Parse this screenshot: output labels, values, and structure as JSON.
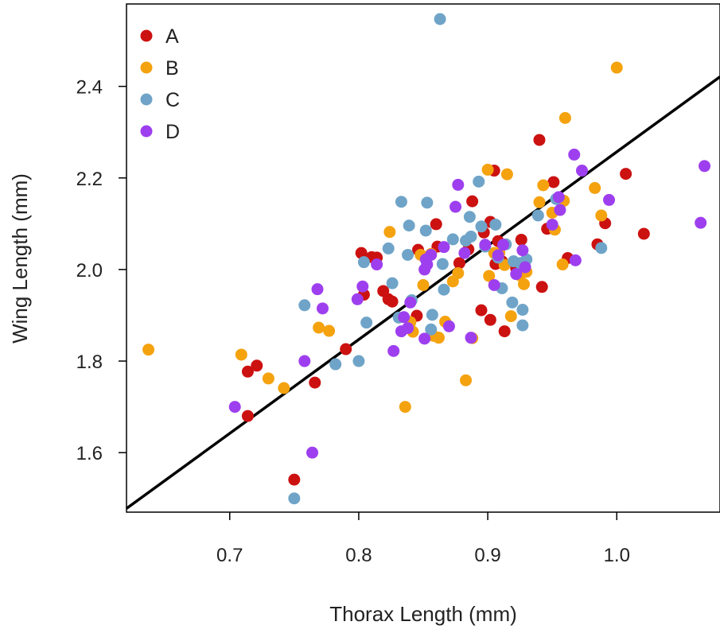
{
  "chart_data": {
    "type": "scatter",
    "title": "",
    "xlabel": "Thorax Length (mm)",
    "ylabel": "Wing Length (mm)",
    "xlim": [
      0.62,
      1.08
    ],
    "ylim": [
      1.47,
      2.58
    ],
    "x_ticks": [
      0.7,
      0.8,
      0.9,
      1.0
    ],
    "x_tick_labels": [
      "0.7",
      "0.8",
      "0.9",
      "1.0"
    ],
    "y_ticks": [
      1.6,
      1.8,
      2.0,
      2.2,
      2.4
    ],
    "y_tick_labels": [
      "1.6",
      "1.8",
      "2.0",
      "2.2",
      "2.4"
    ],
    "grid": false,
    "legend_position": "top-left",
    "regression_line": {
      "x": [
        0.62,
        1.08
      ],
      "y": [
        1.478,
        2.421
      ],
      "color": "#000000"
    },
    "series": [
      {
        "name": "A",
        "color": "#cc1111",
        "points": [
          [
            0.714,
            1.68
          ],
          [
            0.714,
            1.777
          ],
          [
            0.721,
            1.79
          ],
          [
            0.75,
            1.541
          ],
          [
            0.766,
            1.753
          ],
          [
            0.79,
            1.826
          ],
          [
            0.802,
            2.036
          ],
          [
            0.804,
            1.945
          ],
          [
            0.81,
            2.027
          ],
          [
            0.814,
            2.026
          ],
          [
            0.819,
            1.953
          ],
          [
            0.823,
            1.935
          ],
          [
            0.826,
            1.93
          ],
          [
            0.845,
            1.899
          ],
          [
            0.846,
            2.043
          ],
          [
            0.86,
            2.099
          ],
          [
            0.861,
            2.05
          ],
          [
            0.878,
            2.014
          ],
          [
            0.885,
            2.044
          ],
          [
            0.888,
            2.149
          ],
          [
            0.895,
            1.911
          ],
          [
            0.897,
            2.081
          ],
          [
            0.902,
            1.89
          ],
          [
            0.902,
            2.104
          ],
          [
            0.905,
            2.216
          ],
          [
            0.906,
            2.012
          ],
          [
            0.908,
            2.062
          ],
          [
            0.911,
            2.018
          ],
          [
            0.913,
            1.865
          ],
          [
            0.922,
            2.003
          ],
          [
            0.926,
            2.065
          ],
          [
            0.94,
            2.283
          ],
          [
            0.942,
            1.962
          ],
          [
            0.946,
            2.089
          ],
          [
            0.951,
            2.191
          ],
          [
            0.962,
            2.025
          ],
          [
            0.985,
            2.055
          ],
          [
            0.991,
            2.101
          ],
          [
            1.007,
            2.209
          ],
          [
            1.021,
            2.078
          ]
        ]
      },
      {
        "name": "B",
        "color": "#f5a20f",
        "points": [
          [
            0.637,
            1.825
          ],
          [
            0.709,
            1.814
          ],
          [
            0.73,
            1.762
          ],
          [
            0.742,
            1.741
          ],
          [
            0.769,
            1.873
          ],
          [
            0.777,
            1.866
          ],
          [
            0.824,
            2.082
          ],
          [
            0.836,
            1.7
          ],
          [
            0.84,
            1.885
          ],
          [
            0.842,
            1.864
          ],
          [
            0.848,
            2.032
          ],
          [
            0.85,
            1.966
          ],
          [
            0.856,
            2.034
          ],
          [
            0.858,
            1.855
          ],
          [
            0.862,
            1.851
          ],
          [
            0.867,
            1.886
          ],
          [
            0.873,
            1.974
          ],
          [
            0.877,
            1.992
          ],
          [
            0.883,
            1.758
          ],
          [
            0.888,
            1.85
          ],
          [
            0.9,
            2.218
          ],
          [
            0.901,
            1.986
          ],
          [
            0.905,
            2.036
          ],
          [
            0.909,
            2.037
          ],
          [
            0.913,
            2.01
          ],
          [
            0.915,
            2.208
          ],
          [
            0.918,
            1.898
          ],
          [
            0.925,
            1.987
          ],
          [
            0.928,
            1.968
          ],
          [
            0.93,
            1.995
          ],
          [
            0.94,
            2.147
          ],
          [
            0.943,
            2.184
          ],
          [
            0.95,
            2.124
          ],
          [
            0.952,
            2.087
          ],
          [
            0.958,
            2.011
          ],
          [
            0.959,
            2.15
          ],
          [
            0.96,
            2.331
          ],
          [
            0.983,
            2.178
          ],
          [
            0.988,
            2.118
          ],
          [
            1.0,
            2.441
          ]
        ]
      },
      {
        "name": "C",
        "color": "#6fa4c8",
        "points": [
          [
            0.75,
            1.5
          ],
          [
            0.758,
            1.922
          ],
          [
            0.782,
            1.793
          ],
          [
            0.8,
            1.8
          ],
          [
            0.804,
            2.016
          ],
          [
            0.806,
            1.884
          ],
          [
            0.823,
            2.046
          ],
          [
            0.826,
            1.97
          ],
          [
            0.831,
            1.895
          ],
          [
            0.833,
            2.148
          ],
          [
            0.838,
            2.032
          ],
          [
            0.839,
            2.096
          ],
          [
            0.841,
            1.933
          ],
          [
            0.852,
            2.085
          ],
          [
            0.853,
            2.146
          ],
          [
            0.856,
            1.869
          ],
          [
            0.857,
            1.901
          ],
          [
            0.863,
            2.547
          ],
          [
            0.865,
            2.012
          ],
          [
            0.866,
            1.956
          ],
          [
            0.873,
            2.066
          ],
          [
            0.883,
            2.063
          ],
          [
            0.886,
            2.115
          ],
          [
            0.887,
            2.072
          ],
          [
            0.893,
            2.192
          ],
          [
            0.895,
            2.094
          ],
          [
            0.898,
            2.05
          ],
          [
            0.906,
            2.098
          ],
          [
            0.908,
            2.026
          ],
          [
            0.911,
            1.959
          ],
          [
            0.914,
            2.055
          ],
          [
            0.919,
            1.928
          ],
          [
            0.92,
            2.018
          ],
          [
            0.925,
            2.014
          ],
          [
            0.927,
            1.878
          ],
          [
            0.927,
            1.912
          ],
          [
            0.93,
            2.022
          ],
          [
            0.939,
            2.118
          ],
          [
            0.953,
            2.154
          ],
          [
            0.988,
            2.047
          ]
        ]
      },
      {
        "name": "D",
        "color": "#9e3fef",
        "points": [
          [
            0.704,
            1.7
          ],
          [
            0.758,
            1.8
          ],
          [
            0.764,
            1.6
          ],
          [
            0.768,
            1.957
          ],
          [
            0.772,
            1.915
          ],
          [
            0.799,
            1.935
          ],
          [
            0.803,
            1.963
          ],
          [
            0.814,
            2.011
          ],
          [
            0.827,
            1.822
          ],
          [
            0.833,
            1.865
          ],
          [
            0.835,
            1.896
          ],
          [
            0.838,
            1.872
          ],
          [
            0.84,
            1.928
          ],
          [
            0.851,
            1.849
          ],
          [
            0.852,
            2.022
          ],
          [
            0.853,
            2.011
          ],
          [
            0.856,
            2.032
          ],
          [
            0.866,
            2.049
          ],
          [
            0.87,
            1.876
          ],
          [
            0.875,
            2.137
          ],
          [
            0.877,
            2.185
          ],
          [
            0.882,
            2.036
          ],
          [
            0.887,
            1.851
          ],
          [
            0.898,
            2.054
          ],
          [
            0.905,
            1.966
          ],
          [
            0.908,
            2.031
          ],
          [
            0.912,
            2.054
          ],
          [
            0.922,
            1.99
          ],
          [
            0.927,
            2.042
          ],
          [
            0.95,
            2.098
          ],
          [
            0.956,
            2.13
          ],
          [
            0.967,
            2.251
          ],
          [
            0.968,
            2.02
          ],
          [
            0.973,
            2.216
          ],
          [
            0.994,
            2.152
          ],
          [
            1.065,
            2.102
          ],
          [
            1.068,
            2.226
          ],
          [
            0.955,
            2.158
          ],
          [
            0.929,
            2.005
          ],
          [
            0.851,
            2.0
          ]
        ]
      }
    ]
  }
}
